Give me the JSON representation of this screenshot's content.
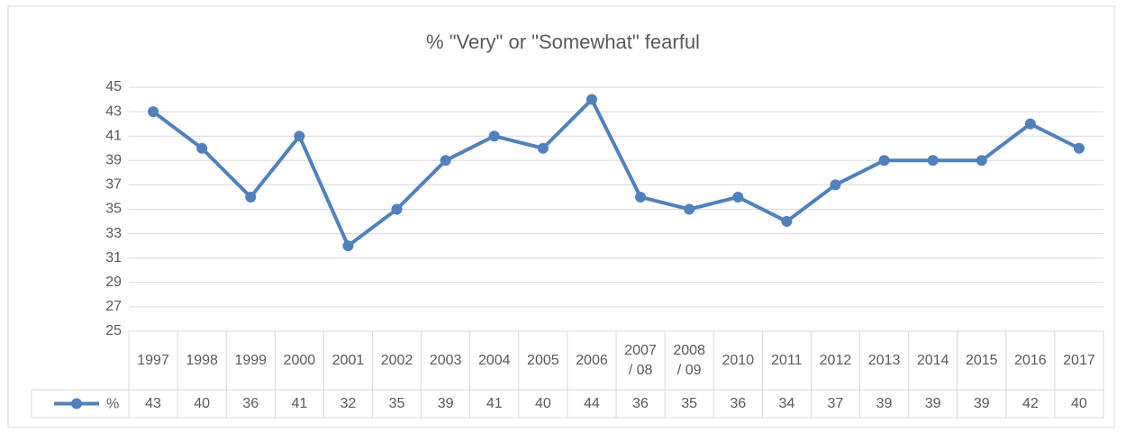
{
  "chart_data": {
    "type": "line",
    "title": "% \"Very\" or \"Somewhat\" fearful",
    "categories": [
      "1997",
      "1998",
      "1999",
      "2000",
      "2001",
      "2002",
      "2003",
      "2004",
      "2005",
      "2006",
      "2007\n/ 08",
      "2008\n/ 09",
      "2010",
      "2011",
      "2012",
      "2013",
      "2014",
      "2015",
      "2016",
      "2017"
    ],
    "series": [
      {
        "name": "%",
        "color": "#4f81bd",
        "values": [
          43,
          40,
          36,
          41,
          32,
          35,
          39,
          41,
          40,
          44,
          36,
          35,
          36,
          34,
          37,
          39,
          39,
          39,
          42,
          40
        ]
      }
    ],
    "ylim": [
      25,
      45
    ],
    "yticks": [
      25,
      27,
      29,
      31,
      33,
      35,
      37,
      39,
      41,
      43,
      45
    ],
    "grid": true,
    "data_table": true
  }
}
